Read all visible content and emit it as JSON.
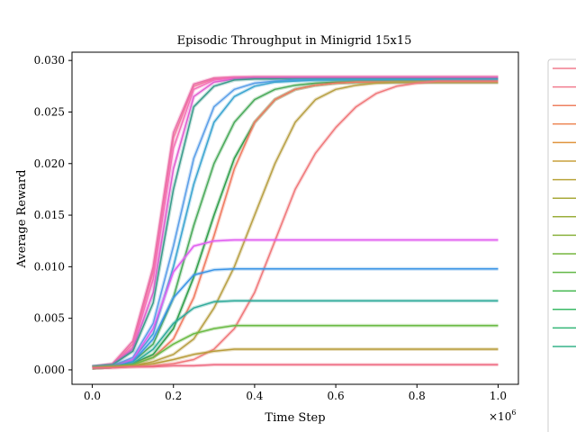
{
  "chart_data": {
    "type": "line",
    "title": "Episodic Throughput in Minigrid 15x15",
    "xlabel": "Time Step",
    "ylabel": "Average Reward",
    "x_multiplier_label": "×10",
    "x_multiplier_exp": "6",
    "xlim": [
      -0.05,
      1.05
    ],
    "ylim": [
      -0.0014,
      0.0308
    ],
    "xticks": [
      0.0,
      0.2,
      0.4,
      0.6,
      0.8,
      1.0
    ],
    "xtick_labels": [
      "0.0",
      "0.2",
      "0.4",
      "0.6",
      "0.8",
      "1.0"
    ],
    "yticks": [
      0.0,
      0.005,
      0.01,
      0.015,
      0.02,
      0.025,
      0.03
    ],
    "ytick_labels": [
      "0.000",
      "0.005",
      "0.010",
      "0.015",
      "0.020",
      "0.025",
      "0.030"
    ],
    "grid": false,
    "legend": "right, clipped",
    "x": [
      0.0,
      0.05,
      0.1,
      0.15,
      0.2,
      0.25,
      0.3,
      0.35,
      0.4,
      0.45,
      0.5,
      0.55,
      0.6,
      0.65,
      0.7,
      0.75,
      0.8,
      0.85,
      0.9,
      0.95,
      1.0
    ],
    "series": [
      {
        "color": "#f27a9a",
        "values": [
          0.0003,
          0.0005,
          0.0025,
          0.0095,
          0.0225,
          0.0275,
          0.0282,
          0.0283,
          0.0284,
          0.0284,
          0.0284,
          0.0284,
          0.0284,
          0.0284,
          0.0284,
          0.0284,
          0.0284,
          0.0284,
          0.0284,
          0.0284,
          0.0284
        ]
      },
      {
        "color": "#ea6fa8",
        "values": [
          0.0003,
          0.0006,
          0.0028,
          0.01,
          0.023,
          0.0277,
          0.0283,
          0.0284,
          0.0284,
          0.0284,
          0.0284,
          0.0284,
          0.0284,
          0.0284,
          0.0284,
          0.0284,
          0.0284,
          0.0284,
          0.0284,
          0.0284,
          0.0284
        ]
      },
      {
        "color": "#f571b8",
        "values": [
          0.0003,
          0.0005,
          0.0022,
          0.0088,
          0.0215,
          0.0272,
          0.0281,
          0.0283,
          0.0283,
          0.0283,
          0.0283,
          0.0283,
          0.0283,
          0.0283,
          0.0283,
          0.0283,
          0.0283,
          0.0283,
          0.0283,
          0.0283,
          0.0283
        ]
      },
      {
        "color": "#e05ed0",
        "values": [
          0.0003,
          0.0005,
          0.002,
          0.0075,
          0.0195,
          0.0265,
          0.0279,
          0.0282,
          0.0283,
          0.0283,
          0.0283,
          0.0283,
          0.0283,
          0.0283,
          0.0283,
          0.0283,
          0.0283,
          0.0283,
          0.0283,
          0.0283,
          0.0283
        ]
      },
      {
        "color": "#3c9c8c",
        "values": [
          0.0003,
          0.0005,
          0.0018,
          0.0065,
          0.0175,
          0.0255,
          0.0275,
          0.0281,
          0.0282,
          0.0282,
          0.0282,
          0.0282,
          0.0282,
          0.0282,
          0.0282,
          0.0282,
          0.0282,
          0.0282,
          0.0282,
          0.0282,
          0.0282
        ]
      },
      {
        "color": "#5a9ee8",
        "values": [
          0.0003,
          0.0004,
          0.0012,
          0.0045,
          0.012,
          0.0205,
          0.0255,
          0.0272,
          0.0278,
          0.028,
          0.0281,
          0.0281,
          0.0281,
          0.0281,
          0.0281,
          0.0281,
          0.0281,
          0.0281,
          0.0281,
          0.0281,
          0.0281
        ]
      },
      {
        "color": "#3aa4d0",
        "values": [
          0.0003,
          0.0004,
          0.001,
          0.0035,
          0.01,
          0.018,
          0.024,
          0.0265,
          0.0275,
          0.0279,
          0.028,
          0.0281,
          0.0281,
          0.0281,
          0.0281,
          0.0281,
          0.0281,
          0.0281,
          0.0281,
          0.0281,
          0.0281
        ]
      },
      {
        "color": "#4aaa5a",
        "values": [
          0.0003,
          0.0004,
          0.0008,
          0.0025,
          0.007,
          0.014,
          0.02,
          0.024,
          0.0262,
          0.0272,
          0.0276,
          0.0278,
          0.0279,
          0.0279,
          0.0279,
          0.0279,
          0.0279,
          0.0279,
          0.0279,
          0.0279,
          0.0279
        ]
      },
      {
        "color": "#2f9e4a",
        "values": [
          0.0002,
          0.0003,
          0.0006,
          0.0015,
          0.004,
          0.009,
          0.015,
          0.0205,
          0.024,
          0.0262,
          0.0272,
          0.0276,
          0.0278,
          0.0279,
          0.0279,
          0.0279,
          0.0279,
          0.0279,
          0.0279,
          0.0279,
          0.0279
        ]
      },
      {
        "color": "#f07a60",
        "values": [
          0.0002,
          0.0003,
          0.0005,
          0.0012,
          0.003,
          0.007,
          0.013,
          0.0195,
          0.024,
          0.0262,
          0.0272,
          0.0276,
          0.0278,
          0.0279,
          0.0279,
          0.0279,
          0.0279,
          0.0279,
          0.0279,
          0.0279,
          0.0279
        ]
      },
      {
        "color": "#b8a044",
        "values": [
          0.0002,
          0.0003,
          0.0004,
          0.0008,
          0.0015,
          0.003,
          0.006,
          0.01,
          0.015,
          0.02,
          0.024,
          0.0262,
          0.0272,
          0.0276,
          0.0278,
          0.0279,
          0.0279,
          0.0279,
          0.0279,
          0.0279,
          0.0279
        ]
      },
      {
        "color": "#f0787a",
        "values": [
          0.0002,
          0.0003,
          0.0003,
          0.0004,
          0.0006,
          0.001,
          0.002,
          0.004,
          0.0075,
          0.0125,
          0.0175,
          0.021,
          0.0235,
          0.0255,
          0.0268,
          0.0275,
          0.0278,
          0.028,
          0.028,
          0.028,
          0.028
        ]
      },
      {
        "color": "#e05ef0",
        "values": [
          0.0002,
          0.0003,
          0.001,
          0.004,
          0.0095,
          0.012,
          0.0125,
          0.0126,
          0.0126,
          0.0126,
          0.0126,
          0.0126,
          0.0126,
          0.0126,
          0.0126,
          0.0126,
          0.0126,
          0.0126,
          0.0126,
          0.0126,
          0.0126
        ]
      },
      {
        "color": "#3a94e6",
        "values": [
          0.0002,
          0.0003,
          0.0008,
          0.003,
          0.007,
          0.0092,
          0.0097,
          0.0098,
          0.0098,
          0.0098,
          0.0098,
          0.0098,
          0.0098,
          0.0098,
          0.0098,
          0.0098,
          0.0098,
          0.0098,
          0.0098,
          0.0098,
          0.0098
        ]
      },
      {
        "color": "#2faa9a",
        "values": [
          0.0002,
          0.0003,
          0.0006,
          0.002,
          0.0045,
          0.006,
          0.0066,
          0.0067,
          0.0067,
          0.0067,
          0.0067,
          0.0067,
          0.0067,
          0.0067,
          0.0067,
          0.0067,
          0.0067,
          0.0067,
          0.0067,
          0.0067,
          0.0067
        ]
      },
      {
        "color": "#6aba44",
        "values": [
          0.0002,
          0.0003,
          0.0005,
          0.0012,
          0.0025,
          0.0035,
          0.004,
          0.0043,
          0.0043,
          0.0043,
          0.0043,
          0.0043,
          0.0043,
          0.0043,
          0.0043,
          0.0043,
          0.0043,
          0.0043,
          0.0043,
          0.0043,
          0.0043
        ]
      },
      {
        "color": "#b89c3a",
        "values": [
          0.0002,
          0.0003,
          0.0004,
          0.0006,
          0.001,
          0.0015,
          0.0018,
          0.002,
          0.002,
          0.002,
          0.002,
          0.002,
          0.002,
          0.002,
          0.002,
          0.002,
          0.002,
          0.002,
          0.002,
          0.002,
          0.002
        ]
      },
      {
        "color": "#ee6a82",
        "values": [
          0.0002,
          0.0002,
          0.0003,
          0.0003,
          0.0004,
          0.0004,
          0.0005,
          0.0005,
          0.0005,
          0.0005,
          0.0005,
          0.0005,
          0.0005,
          0.0005,
          0.0005,
          0.0005,
          0.0005,
          0.0005,
          0.0005,
          0.0005,
          0.0005
        ]
      }
    ],
    "legend_colors": [
      "#f17c8e",
      "#f17c8e",
      "#ee8060",
      "#ee8a5a",
      "#e0943e",
      "#c9a03c",
      "#b9a43a",
      "#a8aa3a",
      "#9aae3a",
      "#8ab23e",
      "#76b63e",
      "#62b846",
      "#4aba54",
      "#3aba66",
      "#34b678",
      "#36b48a"
    ]
  }
}
